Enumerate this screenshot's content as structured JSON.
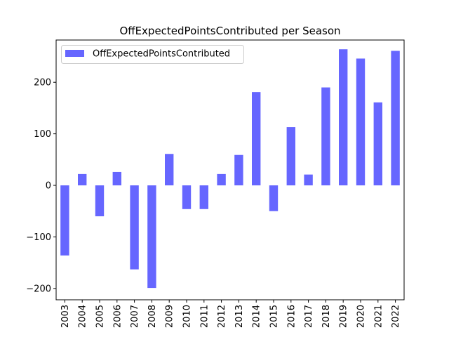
{
  "chart_data": {
    "type": "bar",
    "title": "OffExpectedPointsContributed per Season",
    "xlabel": "",
    "ylabel": "",
    "categories": [
      "2003",
      "2004",
      "2005",
      "2006",
      "2007",
      "2008",
      "2009",
      "2010",
      "2011",
      "2012",
      "2013",
      "2014",
      "2015",
      "2016",
      "2017",
      "2018",
      "2019",
      "2020",
      "2021",
      "2022"
    ],
    "series": [
      {
        "name": "OffExpectedPointsContributed",
        "values": [
          -136,
          22,
          -60,
          26,
          -163,
          -199,
          61,
          -46,
          -46,
          22,
          59,
          181,
          -50,
          113,
          21,
          190,
          264,
          246,
          161,
          261
        ],
        "color": "#6666ff"
      }
    ],
    "ylim": [
      -222,
      282
    ],
    "yticks": [
      -200,
      -100,
      0,
      100,
      200
    ],
    "ytick_labels": [
      "−200",
      "−100",
      "0",
      "100",
      "200"
    ],
    "grid": false,
    "legend": "top-left"
  }
}
